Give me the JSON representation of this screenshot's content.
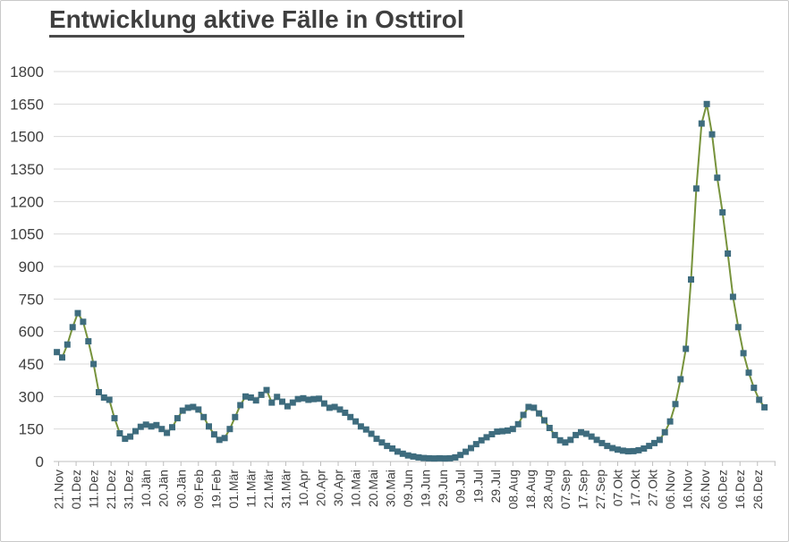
{
  "window": {
    "background": "#ffffff",
    "border_color": "#c9c9c9"
  },
  "chart_data": {
    "type": "line",
    "title": "Entwicklung aktive Fälle in Osttirol",
    "xlabel": "",
    "ylabel": "",
    "legend": "none",
    "grid": "horizontal",
    "ylim": [
      0,
      1800
    ],
    "y_ticks": [
      0,
      150,
      300,
      450,
      600,
      750,
      900,
      1050,
      1200,
      1350,
      1500,
      1650,
      1800
    ],
    "x_tick_labels": [
      "21.Nov",
      "01.Dez",
      "11.Dez",
      "21.Dez",
      "31.Dez",
      "10.Jän",
      "20.Jän",
      "30.Jän",
      "09.Feb",
      "19.Feb",
      "01.Mär",
      "11.Mär",
      "21.Mär",
      "31.Mär",
      "10.Apr",
      "20.Apr",
      "30.Apr",
      "10.Mai",
      "20.Mai",
      "30.Mai",
      "09.Jun",
      "19.Jun",
      "29.Jun",
      "09.Jul",
      "19.Jul",
      "29.Jul",
      "08.Aug",
      "18.Aug",
      "28.Aug",
      "07.Sep",
      "17.Sep",
      "27.Sep",
      "07.Okt",
      "17.Okt",
      "27.Okt",
      "06.Nov",
      "16.Nov",
      "26.Nov",
      "06.Dez",
      "16.Dez",
      "26.Dez"
    ],
    "first_tick_day_offset": 1,
    "tick_interval_days": 10,
    "point_interval_days": 3,
    "dates": [
      "20.Nov",
      "23.Nov",
      "26.Nov",
      "29.Nov",
      "02.Dez",
      "05.Dez",
      "08.Dez",
      "11.Dez",
      "14.Dez",
      "17.Dez",
      "20.Dez",
      "23.Dez",
      "26.Dez",
      "29.Dez",
      "01.Jän",
      "04.Jän",
      "07.Jän",
      "10.Jän",
      "13.Jän",
      "16.Jän",
      "19.Jän",
      "22.Jän",
      "25.Jän",
      "28.Jän",
      "31.Jän",
      "03.Feb",
      "06.Feb",
      "09.Feb",
      "12.Feb",
      "15.Feb",
      "18.Feb",
      "21.Feb",
      "24.Feb",
      "27.Feb",
      "02.Mär",
      "05.Mär",
      "08.Mär",
      "11.Mär",
      "14.Mär",
      "17.Mär",
      "20.Mär",
      "23.Mär",
      "26.Mär",
      "29.Mär",
      "01.Apr",
      "04.Apr",
      "07.Apr",
      "10.Apr",
      "13.Apr",
      "16.Apr",
      "19.Apr",
      "22.Apr",
      "25.Apr",
      "28.Apr",
      "01.Mai",
      "04.Mai",
      "07.Mai",
      "10.Mai",
      "13.Mai",
      "16.Mai",
      "19.Mai",
      "22.Mai",
      "25.Mai",
      "28.Mai",
      "31.Mai",
      "03.Jun",
      "06.Jun",
      "09.Jun",
      "12.Jun",
      "15.Jun",
      "18.Jun",
      "21.Jun",
      "24.Jun",
      "27.Jun",
      "30.Jun",
      "03.Jul",
      "06.Jul",
      "09.Jul",
      "12.Jul",
      "15.Jul",
      "18.Jul",
      "21.Jul",
      "24.Jul",
      "27.Jul",
      "30.Jul",
      "02.Aug",
      "05.Aug",
      "08.Aug",
      "11.Aug",
      "14.Aug",
      "17.Aug",
      "20.Aug",
      "23.Aug",
      "26.Aug",
      "29.Aug",
      "01.Sep",
      "04.Sep",
      "07.Sep",
      "10.Sep",
      "13.Sep",
      "16.Sep",
      "19.Sep",
      "22.Sep",
      "25.Sep",
      "28.Sep",
      "01.Okt",
      "04.Okt",
      "07.Okt",
      "10.Okt",
      "13.Okt",
      "16.Okt",
      "19.Okt",
      "22.Okt",
      "25.Okt",
      "28.Okt",
      "31.Okt",
      "03.Nov",
      "06.Nov",
      "09.Nov",
      "12.Nov",
      "15.Nov",
      "18.Nov",
      "21.Nov",
      "24.Nov",
      "27.Nov",
      "30.Nov",
      "03.Dez",
      "06.Dez",
      "09.Dez",
      "12.Dez",
      "15.Dez",
      "18.Dez",
      "21.Dez",
      "24.Dez",
      "27.Dez",
      "30.Dez"
    ],
    "values": [
      505,
      480,
      540,
      620,
      685,
      645,
      555,
      450,
      320,
      295,
      285,
      200,
      130,
      105,
      115,
      140,
      160,
      170,
      162,
      168,
      150,
      132,
      158,
      200,
      235,
      248,
      252,
      240,
      205,
      162,
      125,
      100,
      108,
      150,
      205,
      260,
      300,
      295,
      282,
      308,
      330,
      272,
      298,
      276,
      255,
      272,
      288,
      292,
      285,
      288,
      290,
      268,
      248,
      252,
      240,
      225,
      205,
      185,
      162,
      148,
      128,
      105,
      88,
      72,
      60,
      46,
      36,
      28,
      23,
      19,
      16,
      15,
      14,
      15,
      14,
      15,
      19,
      30,
      45,
      62,
      80,
      98,
      112,
      126,
      138,
      140,
      143,
      150,
      172,
      215,
      252,
      248,
      222,
      190,
      155,
      122,
      98,
      88,
      100,
      122,
      135,
      128,
      115,
      100,
      85,
      72,
      62,
      55,
      50,
      47,
      48,
      52,
      60,
      72,
      85,
      100,
      135,
      185,
      265,
      380,
      520,
      840,
      1260,
      1560,
      1650,
      1510,
      1310,
      1150,
      960,
      760,
      620,
      500,
      410,
      340,
      285,
      250
    ],
    "line_color": "#77933C",
    "marker_color": "#3E6C7E",
    "marker_shape": "square",
    "grid_color": "#d9d9d9",
    "axis_line_color": "#bfbfbf",
    "axis_label_color": "#3f3f3f",
    "title_color": "#3f3f3f"
  }
}
